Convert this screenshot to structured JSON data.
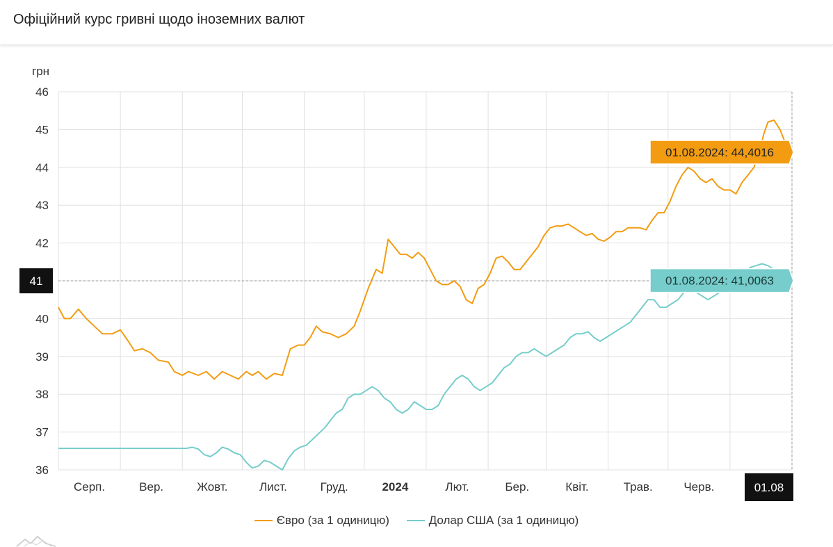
{
  "header": {
    "title": "Офіційний курс гривні щодо іноземних валют"
  },
  "chart_data": {
    "type": "line",
    "title": "Офіційний курс гривні щодо іноземних валют",
    "ylabel": "грн",
    "ylim": [
      36,
      46
    ],
    "yticks": [
      "36",
      "37",
      "38",
      "39",
      "40",
      "41",
      "42",
      "43",
      "44",
      "45",
      "46"
    ],
    "grid": true,
    "month_labels": [
      {
        "label": "Серп.",
        "day": 31
      },
      {
        "label": "Вер.",
        "day": 62
      },
      {
        "label": "Жовт.",
        "day": 92
      },
      {
        "label": "Лист.",
        "day": 123
      },
      {
        "label": "Груд.",
        "day": 153
      },
      {
        "label": "2024",
        "day": 184,
        "bold": true
      },
      {
        "label": "Лют.",
        "day": 215
      },
      {
        "label": "Бер.",
        "day": 244
      },
      {
        "label": "Квіт.",
        "day": 275
      },
      {
        "label": "Трав.",
        "day": 305
      },
      {
        "label": "Черв.",
        "day": 336
      }
    ],
    "x_domain_days": [
      0,
      367
    ],
    "x_end_label": "01.08",
    "crosshair": {
      "value": 41,
      "label": "41"
    },
    "series": [
      {
        "name": "Євро (за 1 одиницю)",
        "color": "#f39c12",
        "tooltip": "01.08.2024: 44,4016",
        "points": [
          [
            0,
            40.3
          ],
          [
            3,
            40.0
          ],
          [
            6,
            40.0
          ],
          [
            10,
            40.25
          ],
          [
            14,
            40.0
          ],
          [
            18,
            39.8
          ],
          [
            22,
            39.6
          ],
          [
            27,
            39.6
          ],
          [
            31,
            39.7
          ],
          [
            35,
            39.4
          ],
          [
            38,
            39.15
          ],
          [
            42,
            39.2
          ],
          [
            46,
            39.1
          ],
          [
            50,
            38.9
          ],
          [
            55,
            38.85
          ],
          [
            58,
            38.6
          ],
          [
            62,
            38.5
          ],
          [
            65,
            38.6
          ],
          [
            70,
            38.5
          ],
          [
            74,
            38.6
          ],
          [
            78,
            38.4
          ],
          [
            82,
            38.6
          ],
          [
            86,
            38.5
          ],
          [
            90,
            38.4
          ],
          [
            94,
            38.6
          ],
          [
            97,
            38.5
          ],
          [
            100,
            38.6
          ],
          [
            104,
            38.4
          ],
          [
            108,
            38.55
          ],
          [
            112,
            38.5
          ],
          [
            116,
            39.2
          ],
          [
            120,
            39.3
          ],
          [
            123,
            39.3
          ],
          [
            126,
            39.5
          ],
          [
            129,
            39.8
          ],
          [
            132,
            39.65
          ],
          [
            136,
            39.6
          ],
          [
            140,
            39.5
          ],
          [
            144,
            39.6
          ],
          [
            148,
            39.8
          ],
          [
            151,
            40.2
          ],
          [
            155,
            40.8
          ],
          [
            159,
            41.3
          ],
          [
            162,
            41.2
          ],
          [
            165,
            42.1
          ],
          [
            168,
            41.9
          ],
          [
            171,
            41.7
          ],
          [
            174,
            41.7
          ],
          [
            177,
            41.6
          ],
          [
            180,
            41.75
          ],
          [
            183,
            41.6
          ],
          [
            186,
            41.3
          ],
          [
            189,
            41.0
          ],
          [
            192,
            40.9
          ],
          [
            195,
            40.9
          ],
          [
            198,
            41.0
          ],
          [
            201,
            40.85
          ],
          [
            204,
            40.5
          ],
          [
            207,
            40.4
          ],
          [
            210,
            40.8
          ],
          [
            213,
            40.9
          ],
          [
            216,
            41.2
          ],
          [
            219,
            41.6
          ],
          [
            222,
            41.65
          ],
          [
            225,
            41.5
          ],
          [
            228,
            41.3
          ],
          [
            231,
            41.3
          ],
          [
            234,
            41.5
          ],
          [
            237,
            41.7
          ],
          [
            240,
            41.9
          ],
          [
            243,
            42.2
          ],
          [
            246,
            42.4
          ],
          [
            249,
            42.45
          ],
          [
            252,
            42.45
          ],
          [
            255,
            42.5
          ],
          [
            258,
            42.4
          ],
          [
            261,
            42.3
          ],
          [
            264,
            42.2
          ],
          [
            267,
            42.25
          ],
          [
            270,
            42.1
          ],
          [
            273,
            42.05
          ],
          [
            276,
            42.15
          ],
          [
            279,
            42.3
          ],
          [
            282,
            42.3
          ],
          [
            285,
            42.4
          ],
          [
            288,
            42.4
          ],
          [
            291,
            42.4
          ],
          [
            294,
            42.35
          ],
          [
            297,
            42.6
          ],
          [
            300,
            42.8
          ],
          [
            303,
            42.8
          ],
          [
            306,
            43.1
          ],
          [
            309,
            43.5
          ],
          [
            312,
            43.8
          ],
          [
            315,
            44.0
          ],
          [
            318,
            43.9
          ],
          [
            321,
            43.7
          ],
          [
            324,
            43.6
          ],
          [
            327,
            43.7
          ],
          [
            330,
            43.5
          ],
          [
            333,
            43.4
          ],
          [
            336,
            43.4
          ],
          [
            339,
            43.3
          ],
          [
            342,
            43.6
          ],
          [
            345,
            43.8
          ],
          [
            348,
            44.0
          ],
          [
            351,
            44.5
          ],
          [
            353,
            44.9
          ],
          [
            355,
            45.2
          ],
          [
            358,
            45.25
          ],
          [
            361,
            45.0
          ],
          [
            364,
            44.6
          ],
          [
            367,
            44.4016
          ]
        ]
      },
      {
        "name": "Долар США (за 1 одиницю)",
        "color": "#76cdcb",
        "tooltip": "01.08.2024: 41,0063",
        "points": [
          [
            0,
            36.5686
          ],
          [
            30,
            36.5686
          ],
          [
            60,
            36.5686
          ],
          [
            64,
            36.5686
          ],
          [
            67,
            36.6
          ],
          [
            70,
            36.55
          ],
          [
            73,
            36.4
          ],
          [
            76,
            36.35
          ],
          [
            79,
            36.45
          ],
          [
            82,
            36.6
          ],
          [
            85,
            36.55
          ],
          [
            88,
            36.45
          ],
          [
            91,
            36.4
          ],
          [
            94,
            36.2
          ],
          [
            97,
            36.05
          ],
          [
            100,
            36.1
          ],
          [
            103,
            36.25
          ],
          [
            106,
            36.2
          ],
          [
            109,
            36.1
          ],
          [
            112,
            36.0
          ],
          [
            115,
            36.3
          ],
          [
            118,
            36.5
          ],
          [
            121,
            36.6
          ],
          [
            124,
            36.65
          ],
          [
            127,
            36.8
          ],
          [
            130,
            36.95
          ],
          [
            133,
            37.1
          ],
          [
            136,
            37.3
          ],
          [
            139,
            37.5
          ],
          [
            142,
            37.6
          ],
          [
            145,
            37.9
          ],
          [
            148,
            38.0
          ],
          [
            151,
            38.0
          ],
          [
            154,
            38.1
          ],
          [
            157,
            38.2
          ],
          [
            160,
            38.1
          ],
          [
            163,
            37.9
          ],
          [
            166,
            37.8
          ],
          [
            169,
            37.6
          ],
          [
            172,
            37.5
          ],
          [
            175,
            37.6
          ],
          [
            178,
            37.8
          ],
          [
            181,
            37.7
          ],
          [
            184,
            37.6
          ],
          [
            187,
            37.6
          ],
          [
            190,
            37.7
          ],
          [
            193,
            38.0
          ],
          [
            196,
            38.2
          ],
          [
            199,
            38.4
          ],
          [
            202,
            38.5
          ],
          [
            205,
            38.4
          ],
          [
            208,
            38.2
          ],
          [
            211,
            38.1
          ],
          [
            214,
            38.2
          ],
          [
            217,
            38.3
          ],
          [
            220,
            38.5
          ],
          [
            223,
            38.7
          ],
          [
            226,
            38.8
          ],
          [
            229,
            39.0
          ],
          [
            232,
            39.1
          ],
          [
            235,
            39.1
          ],
          [
            238,
            39.2
          ],
          [
            241,
            39.1
          ],
          [
            244,
            39.0
          ],
          [
            247,
            39.1
          ],
          [
            250,
            39.2
          ],
          [
            253,
            39.3
          ],
          [
            256,
            39.5
          ],
          [
            259,
            39.6
          ],
          [
            262,
            39.6
          ],
          [
            265,
            39.65
          ],
          [
            268,
            39.5
          ],
          [
            271,
            39.4
          ],
          [
            274,
            39.5
          ],
          [
            277,
            39.6
          ],
          [
            280,
            39.7
          ],
          [
            283,
            39.8
          ],
          [
            286,
            39.9
          ],
          [
            289,
            40.1
          ],
          [
            292,
            40.3
          ],
          [
            295,
            40.5
          ],
          [
            298,
            40.5
          ],
          [
            301,
            40.3
          ],
          [
            304,
            40.3
          ],
          [
            307,
            40.4
          ],
          [
            310,
            40.5
          ],
          [
            313,
            40.7
          ],
          [
            316,
            40.8
          ],
          [
            319,
            40.7
          ],
          [
            322,
            40.6
          ],
          [
            325,
            40.5
          ],
          [
            328,
            40.6
          ],
          [
            331,
            40.7
          ],
          [
            334,
            40.8
          ],
          [
            337,
            40.9
          ],
          [
            340,
            41.0
          ],
          [
            343,
            41.2
          ],
          [
            346,
            41.35
          ],
          [
            349,
            41.4
          ],
          [
            352,
            41.45
          ],
          [
            355,
            41.4
          ],
          [
            358,
            41.3
          ],
          [
            361,
            41.2
          ],
          [
            364,
            41.05
          ],
          [
            367,
            41.0063
          ]
        ]
      }
    ]
  }
}
